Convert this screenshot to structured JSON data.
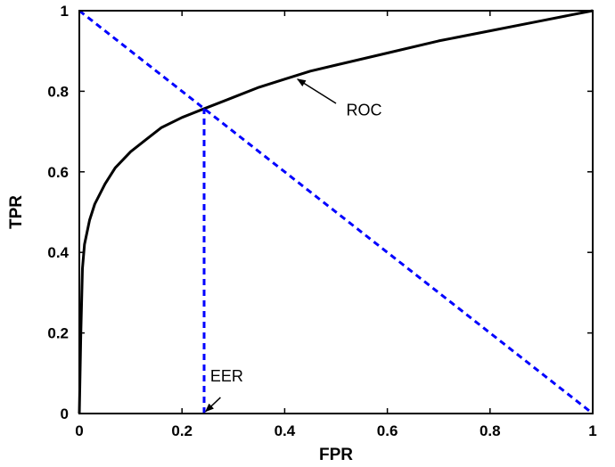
{
  "chart_data": {
    "type": "line",
    "title": "",
    "xlabel": "FPR",
    "ylabel": "TPR",
    "xlim": [
      0,
      1
    ],
    "ylim": [
      0,
      1
    ],
    "xticks": [
      0,
      0.2,
      0.4,
      0.6,
      0.8,
      1
    ],
    "xtick_labels": [
      "0",
      "0.2",
      "0.4",
      "0.6",
      "0.8",
      "1"
    ],
    "yticks": [
      0,
      0.2,
      0.4,
      0.6,
      0.8,
      1
    ],
    "ytick_labels": [
      "0",
      "0.2",
      "0.4",
      "0.6",
      "0.8",
      "1"
    ],
    "grid": false,
    "series": [
      {
        "style": "solid",
        "color": "#000000",
        "x": [
          0,
          0.003,
          0.006,
          0.01,
          0.02,
          0.03,
          0.05,
          0.07,
          0.1,
          0.13,
          0.16,
          0.2,
          0.24,
          0.3,
          0.35,
          0.4,
          0.45,
          0.5,
          0.6,
          0.7,
          0.8,
          0.9,
          1.0
        ],
        "y": [
          0,
          0.2,
          0.36,
          0.42,
          0.48,
          0.52,
          0.57,
          0.61,
          0.65,
          0.68,
          0.71,
          0.735,
          0.755,
          0.785,
          0.81,
          0.83,
          0.85,
          0.865,
          0.895,
          0.925,
          0.95,
          0.975,
          1.0
        ]
      },
      {
        "style": "dashed",
        "color": "#0000ff",
        "x": [
          0,
          1
        ],
        "y": [
          1,
          0
        ]
      },
      {
        "style": "dashed",
        "color": "#0000ff",
        "x": [
          0.243,
          0.243
        ],
        "y": [
          0,
          0.757
        ]
      }
    ],
    "annotations": [
      {
        "text": "ROC",
        "label_x": 0.52,
        "label_y": 0.74,
        "arrow_from_x": 0.5,
        "arrow_from_y": 0.77,
        "arrow_to_x": 0.425,
        "arrow_to_y": 0.83
      },
      {
        "text": "EER",
        "label_x": 0.255,
        "label_y": 0.08,
        "arrow_from_x": 0.275,
        "arrow_from_y": 0.04,
        "arrow_to_x": 0.246,
        "arrow_to_y": 0.005
      }
    ]
  }
}
